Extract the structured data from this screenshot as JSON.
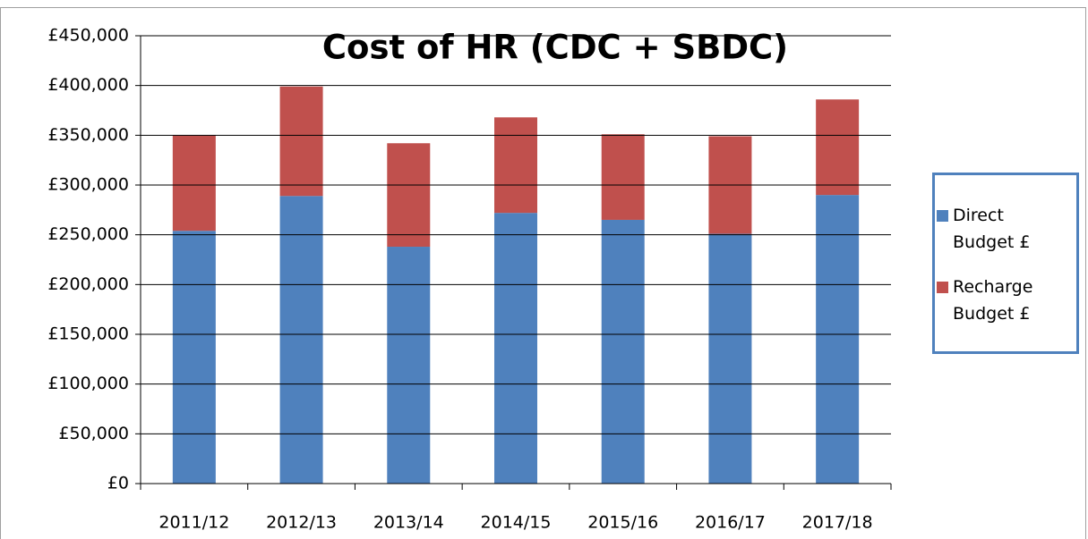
{
  "chart_data": {
    "type": "stacked_bar",
    "title": "Cost of HR (CDC + SBDC)",
    "categories": [
      "2011/12",
      "2012/13",
      "2013/14",
      "2014/15",
      "2015/16",
      "2016/17",
      "2017/18"
    ],
    "series": [
      {
        "name": "Direct Budget £",
        "color": "#4f81bd",
        "values": [
          254000,
          289000,
          238000,
          272000,
          265000,
          251000,
          290000
        ]
      },
      {
        "name": "Recharge Budget £",
        "color": "#c0504d",
        "values": [
          96000,
          110000,
          104000,
          96000,
          86000,
          98000,
          96000
        ]
      }
    ],
    "ylim": [
      0,
      450000
    ],
    "yticks": [
      {
        "value": 0,
        "label": "£0"
      },
      {
        "value": 50000,
        "label": "£50,000"
      },
      {
        "value": 100000,
        "label": "£100,000"
      },
      {
        "value": 150000,
        "label": "£150,000"
      },
      {
        "value": 200000,
        "label": "£200,000"
      },
      {
        "value": 250000,
        "label": "£250,000"
      },
      {
        "value": 300000,
        "label": "£300,000"
      },
      {
        "value": 350000,
        "label": "£350,000"
      },
      {
        "value": 400000,
        "label": "£400,000"
      },
      {
        "value": 450000,
        "label": "£450,000"
      }
    ],
    "grid": true,
    "legend": "right"
  }
}
